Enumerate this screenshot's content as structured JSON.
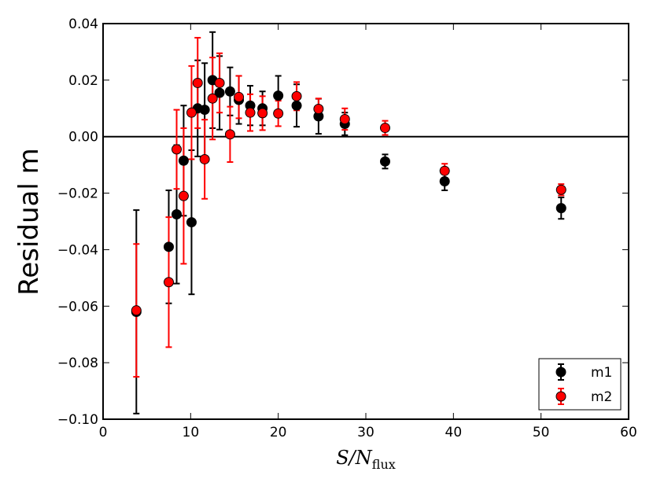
{
  "chart_data": {
    "type": "scatter",
    "title": "",
    "xlabel": "S/N",
    "xlabel_subscript": "flux",
    "ylabel": "Residual m",
    "xlim": [
      0,
      60
    ],
    "ylim": [
      -0.1,
      0.04
    ],
    "xticks": [
      0,
      10,
      20,
      30,
      40,
      50,
      60
    ],
    "yticks": [
      -0.1,
      -0.08,
      -0.06,
      -0.04,
      -0.02,
      0.0,
      0.02,
      0.04
    ],
    "xtick_labels": [
      "0",
      "10",
      "20",
      "30",
      "40",
      "50",
      "60"
    ],
    "ytick_labels": [
      "−0.10",
      "−0.08",
      "−0.06",
      "−0.04",
      "−0.02",
      "0.00",
      "0.02",
      "0.04"
    ],
    "reference_line_y": 0,
    "legend_position": "lower-right",
    "series": [
      {
        "name": "m1",
        "color": "#000000",
        "x": [
          3.8,
          7.5,
          8.4,
          9.2,
          10.1,
          10.8,
          11.6,
          12.5,
          13.3,
          14.5,
          15.5,
          16.8,
          18.2,
          20.0,
          22.1,
          24.6,
          27.6,
          32.2,
          39.0,
          52.3
        ],
        "y": [
          -0.062,
          -0.039,
          -0.0275,
          -0.0085,
          -0.0303,
          0.01,
          0.0095,
          0.02,
          0.0155,
          0.016,
          0.013,
          0.011,
          0.01,
          0.0145,
          0.011,
          0.0072,
          0.0045,
          -0.0088,
          -0.0158,
          -0.0253
        ],
        "err": [
          0.036,
          0.02,
          0.0245,
          0.0195,
          0.0255,
          0.017,
          0.0165,
          0.017,
          0.013,
          0.0085,
          0.0085,
          0.007,
          0.006,
          0.007,
          0.0075,
          0.0062,
          0.004,
          0.0025,
          0.0032,
          0.0038
        ]
      },
      {
        "name": "m2",
        "color": "#ff0000",
        "x": [
          3.8,
          7.5,
          8.4,
          9.2,
          10.1,
          10.8,
          11.6,
          12.5,
          13.3,
          14.5,
          15.5,
          16.8,
          18.2,
          20.0,
          22.1,
          24.6,
          27.6,
          32.2,
          39.0,
          52.3
        ],
        "y": [
          -0.0615,
          -0.0515,
          -0.0045,
          -0.021,
          0.0085,
          0.019,
          -0.008,
          0.0135,
          0.019,
          0.0008,
          0.014,
          0.0085,
          0.0083,
          0.0082,
          0.0143,
          0.0098,
          0.0062,
          0.0031,
          -0.0121,
          -0.0188
        ],
        "err": [
          0.0235,
          0.023,
          0.014,
          0.024,
          0.0165,
          0.016,
          0.014,
          0.0145,
          0.0105,
          0.0098,
          0.0075,
          0.0065,
          0.006,
          0.0045,
          0.005,
          0.0037,
          0.0038,
          0.0025,
          0.0025,
          0.002
        ]
      }
    ]
  }
}
